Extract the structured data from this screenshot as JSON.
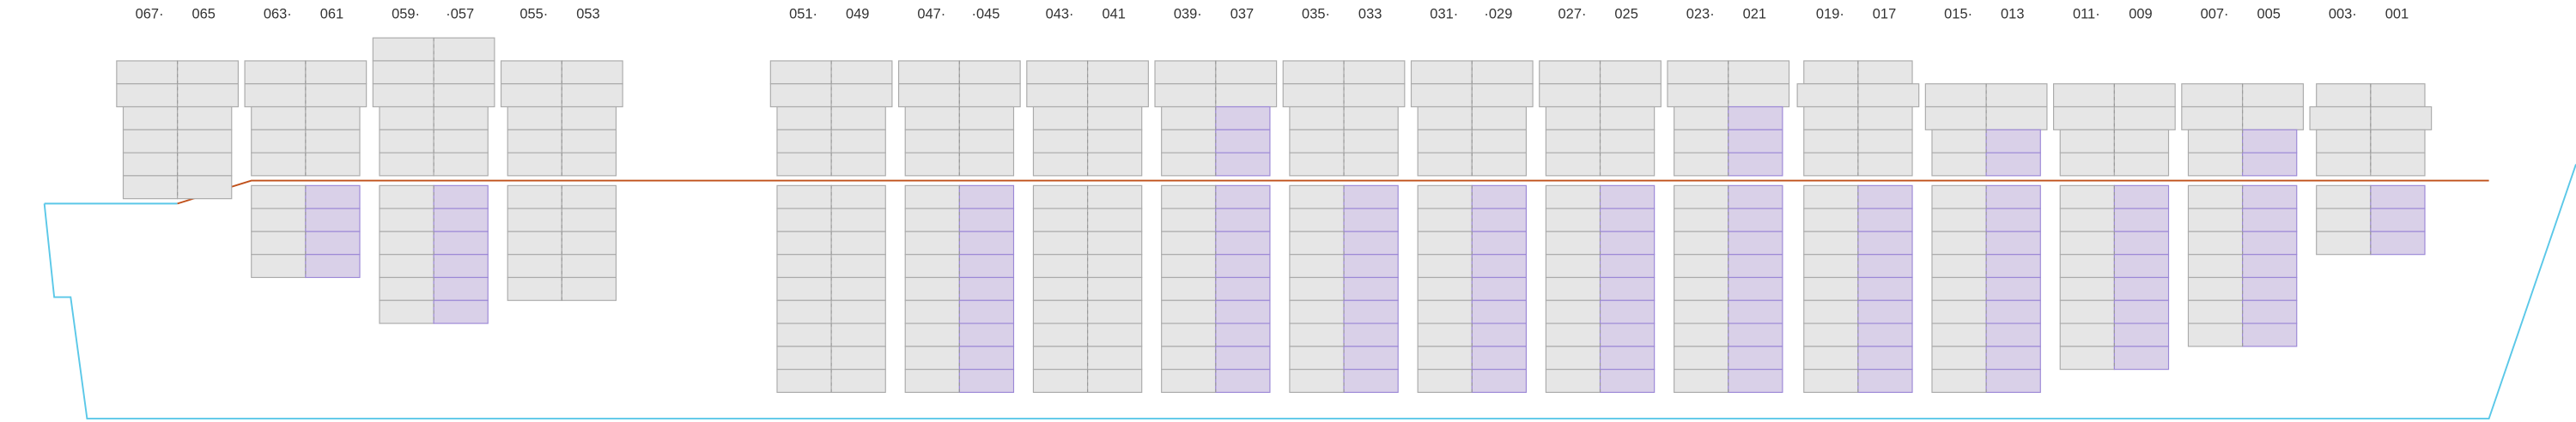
{
  "bays": [
    [
      "067·",
      "065"
    ],
    [
      "063·",
      "061"
    ],
    [
      "059·",
      "·057"
    ],
    [
      "055·",
      "053"
    ],
    [
      "051·",
      "049"
    ],
    [
      "047·",
      "·045"
    ],
    [
      "043·",
      "041"
    ],
    [
      "039·",
      "037"
    ],
    [
      "035·",
      "033"
    ],
    [
      "031·",
      "·029"
    ],
    [
      "027·",
      "025"
    ],
    [
      "023·",
      "021"
    ],
    [
      "019·",
      "017"
    ],
    [
      "015·",
      "013"
    ],
    [
      "011·",
      "009"
    ],
    [
      "007·",
      "005"
    ],
    [
      "003·",
      "001"
    ]
  ]
}
